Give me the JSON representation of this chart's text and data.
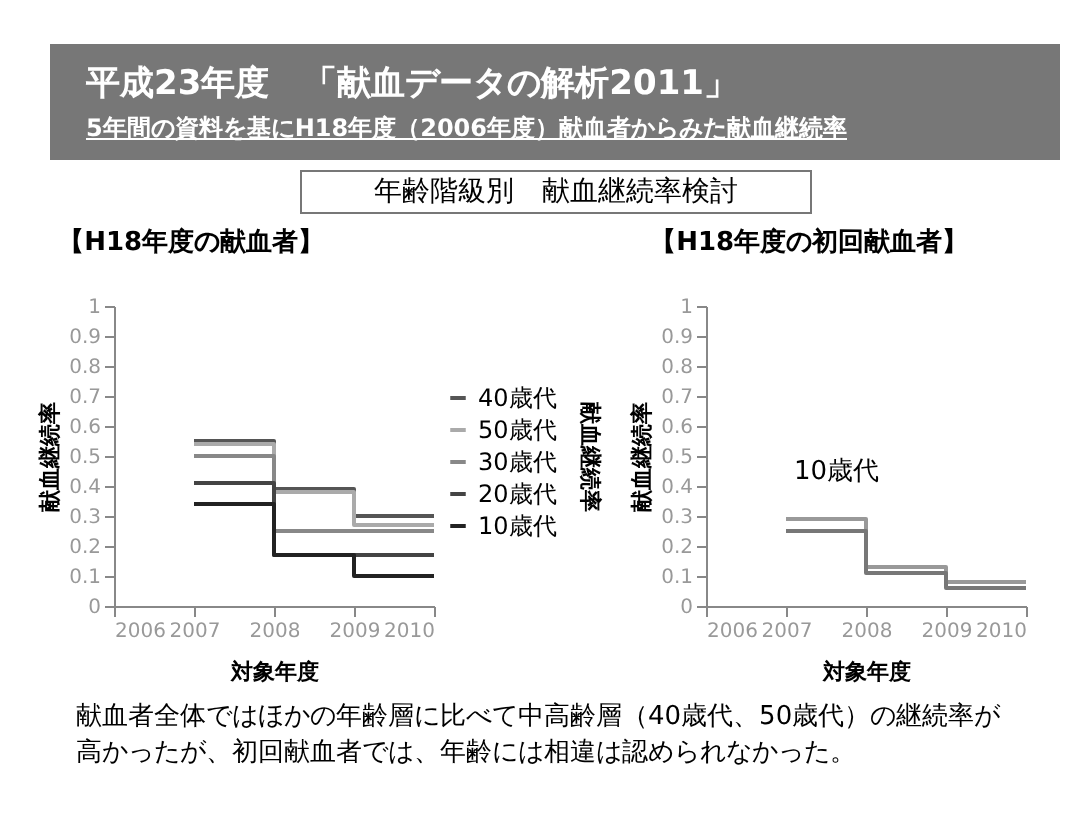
{
  "chart_data": [
    {
      "type": "other",
      "title": "平成23年度　「献血データの解析2011」",
      "subtitle": "5年間の資料を基にH18年度（2006年度）献血者からみた献血継続率",
      "annotations": [
        "年齢階級別　献血継続率検討",
        "献血者全体ではほかの年齢層に比べて中高齢層（40歳代、50歳代）の継続率が高かったが、初回献血者では、年齢には相違は認められなかった。"
      ]
    },
    {
      "type": "step",
      "title": "【H18年度の献血者】",
      "xlabel": "対象年度",
      "ylabel": "献血継続率",
      "y2label": "献血継続率",
      "x": [
        2007,
        2008,
        2009,
        2010
      ],
      "xlim": [
        2006,
        2010
      ],
      "xticks": [
        2006,
        2007,
        2008,
        2009,
        2010
      ],
      "ylim": [
        0,
        1
      ],
      "yticks": [
        0,
        0.1,
        0.2,
        0.3,
        0.4,
        0.5,
        0.6,
        0.7,
        0.8,
        0.9,
        1
      ],
      "legend": "right",
      "series": [
        {
          "name": "40歳代",
          "color": "#555555",
          "values": [
            0.55,
            0.39,
            0.3,
            0.3
          ]
        },
        {
          "name": "50歳代",
          "color": "#aaaaaa",
          "values": [
            0.54,
            0.38,
            0.27,
            0.27
          ]
        },
        {
          "name": "30歳代",
          "color": "#888888",
          "values": [
            0.5,
            0.25,
            0.25,
            0.25
          ]
        },
        {
          "name": "20歳代",
          "color": "#444444",
          "values": [
            0.41,
            0.17,
            0.17,
            0.17
          ]
        },
        {
          "name": "10歳代",
          "color": "#222222",
          "values": [
            0.34,
            0.17,
            0.1,
            0.1
          ]
        }
      ]
    },
    {
      "type": "step",
      "title": "【H18年度の初回献血者】",
      "xlabel": "対象年度",
      "ylabel": "献血継続率",
      "x": [
        2007,
        2008,
        2009,
        2010
      ],
      "xlim": [
        2006,
        2010
      ],
      "xticks": [
        2006,
        2007,
        2008,
        2009,
        2010
      ],
      "ylim": [
        0,
        1
      ],
      "yticks": [
        0,
        0.1,
        0.2,
        0.3,
        0.4,
        0.5,
        0.6,
        0.7,
        0.8,
        0.9,
        1
      ],
      "series": [
        {
          "name": "10歳代",
          "color": "#999999",
          "values": [
            0.29,
            0.13,
            0.08,
            0.08
          ]
        },
        {
          "color": "#777777",
          "values": [
            0.25,
            0.11,
            0.06,
            0.06
          ]
        }
      ]
    }
  ]
}
